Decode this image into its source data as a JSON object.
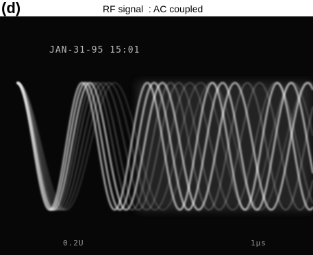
{
  "figure": {
    "panel_label": "(d)",
    "caption": "RF signal  : AC coupled"
  },
  "scope": {
    "timestamp": "JAN-31-95 15:01",
    "volts_per_div": "0.2U",
    "time_per_div": "1µs",
    "background_color": "#070707",
    "trace_color": "#f2f2f2"
  }
}
